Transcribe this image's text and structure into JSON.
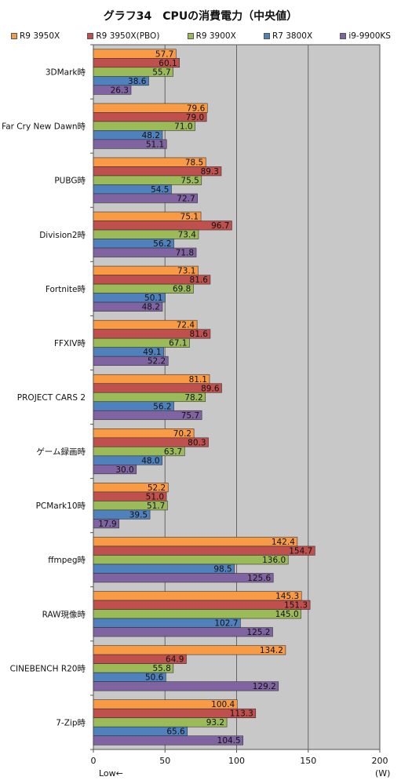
{
  "chart_data": {
    "type": "bar",
    "orientation": "horizontal",
    "title": "グラフ34　CPUの消費電力（中央値）",
    "categories": [
      "3DMark時",
      "Far Cry New Dawn時",
      "PUBG時",
      "Division2時",
      "Fortnite時",
      "FFXIV時",
      "PROJECT CARS 2",
      "ゲーム録画時",
      "PCMark10時",
      "ffmpeg時",
      "RAW現像時",
      "CINEBENCH R20時",
      "7-Zip時"
    ],
    "series": [
      {
        "name": "R9 3950X",
        "color": "#f99b45",
        "values": [
          57.7,
          79.6,
          78.5,
          75.1,
          73.1,
          72.4,
          81.1,
          70.2,
          52.2,
          142.4,
          145.3,
          134.2,
          100.4
        ]
      },
      {
        "name": "R9 3950X(PBO)",
        "color": "#c0504d",
        "values": [
          60.1,
          79.0,
          89.3,
          96.7,
          81.6,
          81.6,
          89.6,
          80.3,
          51.0,
          154.7,
          151.3,
          64.9,
          113.3
        ]
      },
      {
        "name": "R9 3900X",
        "color": "#9bbb59",
        "values": [
          55.7,
          71.0,
          75.5,
          73.4,
          69.8,
          67.1,
          78.2,
          63.7,
          51.7,
          136.0,
          145.0,
          55.8,
          93.2
        ]
      },
      {
        "name": "R7 3800X",
        "color": "#4f81bd",
        "values": [
          38.6,
          48.2,
          54.5,
          56.2,
          50.1,
          49.1,
          56.2,
          48.0,
          39.5,
          98.5,
          102.7,
          50.6,
          65.6
        ]
      },
      {
        "name": "i9-9900KS",
        "color": "#8064a2",
        "values": [
          26.3,
          51.1,
          72.7,
          71.8,
          48.2,
          52.2,
          75.7,
          30.0,
          17.9,
          125.6,
          125.2,
          129.2,
          104.5
        ]
      }
    ],
    "xlim": [
      0,
      200
    ],
    "xticks": [
      0,
      50,
      100,
      150,
      200
    ],
    "x_note": "Low←",
    "x_unit": "(W)",
    "grid": true,
    "legend_position": "top"
  }
}
